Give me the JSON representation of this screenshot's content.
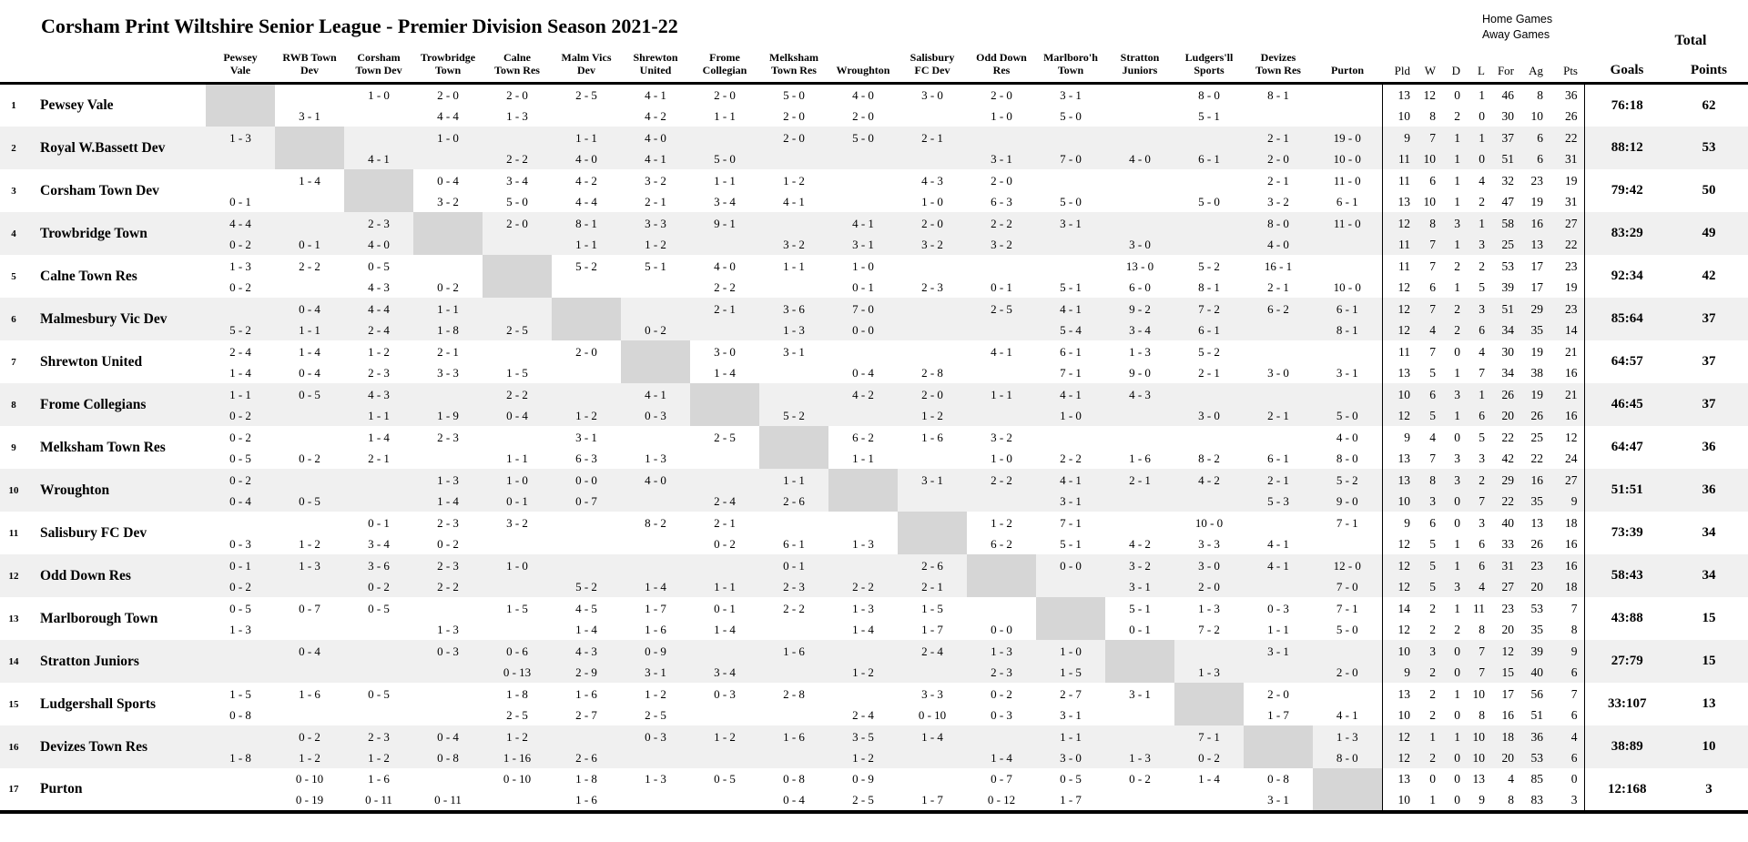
{
  "title": "Corsham Print Wiltshire Senior League - Premier Division Season 2021-22",
  "legend": {
    "home_label": "Home Games",
    "away_label": "Away Games",
    "total_label": "Total"
  },
  "stat_headers": [
    "Pld",
    "W",
    "D",
    "L",
    "For",
    "Ag",
    "Pts"
  ],
  "totals_headers": {
    "goals": "Goals",
    "points": "Points"
  },
  "colors": {
    "background": "#ffffff",
    "stripe": "#f0f0f0",
    "diagonal_cell": "#d6d6d6",
    "border": "#000000",
    "text": "#000000"
  },
  "columns": [
    [
      "Pewsey",
      "Vale"
    ],
    [
      "RWB Town",
      "Dev"
    ],
    [
      "Corsham",
      "Town Dev"
    ],
    [
      "Trowbridge",
      "Town"
    ],
    [
      "Calne",
      "Town Res"
    ],
    [
      "Malm Vics",
      "Dev"
    ],
    [
      "Shrewton",
      "United"
    ],
    [
      "Frome",
      "Collegian"
    ],
    [
      "Melksham",
      "Town Res"
    ],
    [
      "Wroughton"
    ],
    [
      "Salisbury",
      "FC Dev"
    ],
    [
      "Odd Down",
      "Res"
    ],
    [
      "Marlboro'h",
      "Town"
    ],
    [
      "Stratton",
      "Juniors"
    ],
    [
      "Ludgers'll",
      "Sports"
    ],
    [
      "Devizes",
      "Town Res"
    ],
    [
      "Purton"
    ]
  ],
  "teams": [
    {
      "num": "1",
      "name": "Pewsey Vale",
      "home": [
        "",
        "",
        "1 - 0",
        "2 - 0",
        "2 - 0",
        "2 - 5",
        "4 - 1",
        "2 - 0",
        "5 - 0",
        "4 - 0",
        "3 - 0",
        "2 - 0",
        "3 - 1",
        "",
        "8 - 0",
        "8 - 1",
        ""
      ],
      "away": [
        "",
        "3 - 1",
        "",
        "4 - 4",
        "1 - 3",
        "",
        "4 - 2",
        "1 - 1",
        "2 - 0",
        "2 - 0",
        "",
        "1 - 0",
        "5 - 0",
        "",
        "5 - 1",
        "",
        ""
      ],
      "home_stats": [
        13,
        12,
        0,
        1,
        46,
        8,
        36
      ],
      "away_stats": [
        10,
        8,
        2,
        0,
        30,
        10,
        26
      ],
      "goals": "76:18",
      "points": "62"
    },
    {
      "num": "2",
      "name": "Royal W.Bassett Dev",
      "home": [
        "1 - 3",
        "",
        "",
        "1 - 0",
        "",
        "1 - 1",
        "4 - 0",
        "",
        "2 - 0",
        "5 - 0",
        "2 - 1",
        "",
        "",
        "",
        "",
        "2 - 1",
        "19 - 0"
      ],
      "away": [
        "",
        "",
        "4 - 1",
        "",
        "2 - 2",
        "4 - 0",
        "4 - 1",
        "5 - 0",
        "",
        "",
        "",
        "3 - 1",
        "7 - 0",
        "4 - 0",
        "6 - 1",
        "2 - 0",
        "10 - 0"
      ],
      "home_stats": [
        9,
        7,
        1,
        1,
        37,
        6,
        22
      ],
      "away_stats": [
        11,
        10,
        1,
        0,
        51,
        6,
        31
      ],
      "goals": "88:12",
      "points": "53"
    },
    {
      "num": "3",
      "name": "Corsham Town Dev",
      "home": [
        "",
        "1 - 4",
        "",
        "0 - 4",
        "3 - 4",
        "4 - 2",
        "3 - 2",
        "1 - 1",
        "1 - 2",
        "",
        "4 - 3",
        "2 - 0",
        "",
        "",
        "",
        "2 - 1",
        "11 - 0"
      ],
      "away": [
        "0 - 1",
        "",
        "",
        "3 - 2",
        "5 - 0",
        "4 - 4",
        "2 - 1",
        "3 - 4",
        "4 - 1",
        "",
        "1 - 0",
        "6 - 3",
        "5 - 0",
        "",
        "5 - 0",
        "3 - 2",
        "6 - 1"
      ],
      "home_stats": [
        11,
        6,
        1,
        4,
        32,
        23,
        19
      ],
      "away_stats": [
        13,
        10,
        1,
        2,
        47,
        19,
        31
      ],
      "goals": "79:42",
      "points": "50"
    },
    {
      "num": "4",
      "name": "Trowbridge Town",
      "home": [
        "4 - 4",
        "",
        "2 - 3",
        "",
        "2 - 0",
        "8 - 1",
        "3 - 3",
        "9 - 1",
        "",
        "4 - 1",
        "2 - 0",
        "2 - 2",
        "3 - 1",
        "",
        "",
        "8 - 0",
        "11 - 0"
      ],
      "away": [
        "0 - 2",
        "0 - 1",
        "4 - 0",
        "",
        "",
        "1 - 1",
        "1 - 2",
        "",
        "3 - 2",
        "3 - 1",
        "3 - 2",
        "3 - 2",
        "",
        "3 - 0",
        "",
        "4 - 0",
        ""
      ],
      "home_stats": [
        12,
        8,
        3,
        1,
        58,
        16,
        27
      ],
      "away_stats": [
        11,
        7,
        1,
        3,
        25,
        13,
        22
      ],
      "goals": "83:29",
      "points": "49"
    },
    {
      "num": "5",
      "name": "Calne Town Res",
      "home": [
        "1 - 3",
        "2 - 2",
        "0 - 5",
        "",
        "",
        "5 - 2",
        "5 - 1",
        "4 - 0",
        "1 - 1",
        "1 - 0",
        "",
        "",
        "",
        "13 - 0",
        "5 - 2",
        "16 - 1",
        ""
      ],
      "away": [
        "0 - 2",
        "",
        "4 - 3",
        "0 - 2",
        "",
        "",
        "",
        "2 - 2",
        "",
        "0 - 1",
        "2 - 3",
        "0 - 1",
        "5 - 1",
        "6 - 0",
        "8 - 1",
        "2 - 1",
        "10 - 0"
      ],
      "home_stats": [
        11,
        7,
        2,
        2,
        53,
        17,
        23
      ],
      "away_stats": [
        12,
        6,
        1,
        5,
        39,
        17,
        19
      ],
      "goals": "92:34",
      "points": "42"
    },
    {
      "num": "6",
      "name": "Malmesbury Vic Dev",
      "home": [
        "",
        "0 - 4",
        "4 - 4",
        "1 - 1",
        "",
        "",
        "",
        "2 - 1",
        "3 - 6",
        "7 - 0",
        "",
        "2 - 5",
        "4 - 1",
        "9 - 2",
        "7 - 2",
        "6 - 2",
        "6 - 1"
      ],
      "away": [
        "5 - 2",
        "1 - 1",
        "2 - 4",
        "1 - 8",
        "2 - 5",
        "",
        "0 - 2",
        "",
        "1 - 3",
        "0 - 0",
        "",
        "",
        "5 - 4",
        "3 - 4",
        "6 - 1",
        "",
        "8 - 1"
      ],
      "home_stats": [
        12,
        7,
        2,
        3,
        51,
        29,
        23
      ],
      "away_stats": [
        12,
        4,
        2,
        6,
        34,
        35,
        14
      ],
      "goals": "85:64",
      "points": "37"
    },
    {
      "num": "7",
      "name": "Shrewton United",
      "home": [
        "2 - 4",
        "1 - 4",
        "1 - 2",
        "2 - 1",
        "",
        "2 - 0",
        "",
        "3 - 0",
        "3 - 1",
        "",
        "",
        "4 - 1",
        "6 - 1",
        "1 - 3",
        "5 - 2",
        "",
        ""
      ],
      "away": [
        "1 - 4",
        "0 - 4",
        "2 - 3",
        "3 - 3",
        "1 - 5",
        "",
        "",
        "1 - 4",
        "",
        "0 - 4",
        "2 - 8",
        "",
        "7 - 1",
        "9 - 0",
        "2 - 1",
        "3 - 0",
        "3 - 1"
      ],
      "home_stats": [
        11,
        7,
        0,
        4,
        30,
        19,
        21
      ],
      "away_stats": [
        13,
        5,
        1,
        7,
        34,
        38,
        16
      ],
      "goals": "64:57",
      "points": "37"
    },
    {
      "num": "8",
      "name": "Frome Collegians",
      "home": [
        "1 - 1",
        "0 - 5",
        "4 - 3",
        "",
        "2 - 2",
        "",
        "4 - 1",
        "",
        "",
        "4 - 2",
        "2 - 0",
        "1 - 1",
        "4 - 1",
        "4 - 3",
        "",
        "",
        ""
      ],
      "away": [
        "0 - 2",
        "",
        "1 - 1",
        "1 - 9",
        "0 - 4",
        "1 - 2",
        "0 - 3",
        "",
        "5 - 2",
        "",
        "1 - 2",
        "",
        "1 - 0",
        "",
        "3 - 0",
        "2 - 1",
        "5 - 0"
      ],
      "home_stats": [
        10,
        6,
        3,
        1,
        26,
        19,
        21
      ],
      "away_stats": [
        12,
        5,
        1,
        6,
        20,
        26,
        16
      ],
      "goals": "46:45",
      "points": "37"
    },
    {
      "num": "9",
      "name": "Melksham Town Res",
      "home": [
        "0 - 2",
        "",
        "1 - 4",
        "2 - 3",
        "",
        "3 - 1",
        "",
        "2 - 5",
        "",
        "6 - 2",
        "1 - 6",
        "3 - 2",
        "",
        "",
        "",
        "",
        "4 - 0"
      ],
      "away": [
        "0 - 5",
        "0 - 2",
        "2 - 1",
        "",
        "1 - 1",
        "6 - 3",
        "1 - 3",
        "",
        "",
        "1 - 1",
        "",
        "1 - 0",
        "2 - 2",
        "1 - 6",
        "8 - 2",
        "6 - 1",
        "8 - 0"
      ],
      "home_stats": [
        9,
        4,
        0,
        5,
        22,
        25,
        12
      ],
      "away_stats": [
        13,
        7,
        3,
        3,
        42,
        22,
        24
      ],
      "goals": "64:47",
      "points": "36"
    },
    {
      "num": "10",
      "name": "Wroughton",
      "home": [
        "0 - 2",
        "",
        "",
        "1 - 3",
        "1 - 0",
        "0 - 0",
        "4 - 0",
        "",
        "1 - 1",
        "",
        "3 - 1",
        "2 - 2",
        "4 - 1",
        "2 - 1",
        "4 - 2",
        "2 - 1",
        "5 - 2"
      ],
      "away": [
        "0 - 4",
        "0 - 5",
        "",
        "1 - 4",
        "0 - 1",
        "0 - 7",
        "",
        "2 - 4",
        "2 - 6",
        "",
        "",
        "",
        "3 - 1",
        "",
        "",
        "5 - 3",
        "9 - 0"
      ],
      "home_stats": [
        13,
        8,
        3,
        2,
        29,
        16,
        27
      ],
      "away_stats": [
        10,
        3,
        0,
        7,
        22,
        35,
        9
      ],
      "goals": "51:51",
      "points": "36"
    },
    {
      "num": "11",
      "name": "Salisbury FC Dev",
      "home": [
        "",
        "",
        "0 - 1",
        "2 - 3",
        "3 - 2",
        "",
        "8 - 2",
        "2 - 1",
        "",
        "",
        "",
        "1 - 2",
        "7 - 1",
        "",
        "10 - 0",
        "",
        "7 - 1"
      ],
      "away": [
        "0 - 3",
        "1 - 2",
        "3 - 4",
        "0 - 2",
        "",
        "",
        "",
        "0 - 2",
        "6 - 1",
        "1 - 3",
        "",
        "6 - 2",
        "5 - 1",
        "4 - 2",
        "3 - 3",
        "4 - 1",
        ""
      ],
      "home_stats": [
        9,
        6,
        0,
        3,
        40,
        13,
        18
      ],
      "away_stats": [
        12,
        5,
        1,
        6,
        33,
        26,
        16
      ],
      "goals": "73:39",
      "points": "34"
    },
    {
      "num": "12",
      "name": "Odd Down Res",
      "home": [
        "0 - 1",
        "1 - 3",
        "3 - 6",
        "2 - 3",
        "1 - 0",
        "",
        "",
        "",
        "0 - 1",
        "",
        "2 - 6",
        "",
        "0 - 0",
        "3 - 2",
        "3 - 0",
        "4 - 1",
        "12 - 0"
      ],
      "away": [
        "0 - 2",
        "",
        "0 - 2",
        "2 - 2",
        "",
        "5 - 2",
        "1 - 4",
        "1 - 1",
        "2 - 3",
        "2 - 2",
        "2 - 1",
        "",
        "",
        "3 - 1",
        "2 - 0",
        "",
        "7 - 0"
      ],
      "home_stats": [
        12,
        5,
        1,
        6,
        31,
        23,
        16
      ],
      "away_stats": [
        12,
        5,
        3,
        4,
        27,
        20,
        18
      ],
      "goals": "58:43",
      "points": "34"
    },
    {
      "num": "13",
      "name": "Marlborough Town",
      "home": [
        "0 - 5",
        "0 - 7",
        "0 - 5",
        "",
        "1 - 5",
        "4 - 5",
        "1 - 7",
        "0 - 1",
        "2 - 2",
        "1 - 3",
        "1 - 5",
        "",
        "",
        "5 - 1",
        "1 - 3",
        "0 - 3",
        "7 - 1"
      ],
      "away": [
        "1 - 3",
        "",
        "",
        "1 - 3",
        "",
        "1 - 4",
        "1 - 6",
        "1 - 4",
        "",
        "1 - 4",
        "1 - 7",
        "0 - 0",
        "",
        "0 - 1",
        "7 - 2",
        "1 - 1",
        "5 - 0"
      ],
      "home_stats": [
        14,
        2,
        1,
        11,
        23,
        53,
        7
      ],
      "away_stats": [
        12,
        2,
        2,
        8,
        20,
        35,
        8
      ],
      "goals": "43:88",
      "points": "15"
    },
    {
      "num": "14",
      "name": "Stratton Juniors",
      "home": [
        "",
        "0 - 4",
        "",
        "0 - 3",
        "0 - 6",
        "4 - 3",
        "0 - 9",
        "",
        "1 - 6",
        "",
        "2 - 4",
        "1 - 3",
        "1 - 0",
        "",
        "",
        "3 - 1",
        ""
      ],
      "away": [
        "",
        "",
        "",
        "",
        "0 - 13",
        "2 - 9",
        "3 - 1",
        "3 - 4",
        "",
        "1 - 2",
        "",
        "2 - 3",
        "1 - 5",
        "",
        "1 - 3",
        "",
        "2 - 0"
      ],
      "home_stats": [
        10,
        3,
        0,
        7,
        12,
        39,
        9
      ],
      "away_stats": [
        9,
        2,
        0,
        7,
        15,
        40,
        6
      ],
      "goals": "27:79",
      "points": "15"
    },
    {
      "num": "15",
      "name": "Ludgershall Sports",
      "home": [
        "1 - 5",
        "1 - 6",
        "0 - 5",
        "",
        "1 - 8",
        "1 - 6",
        "1 - 2",
        "0 - 3",
        "2 - 8",
        "",
        "3 - 3",
        "0 - 2",
        "2 - 7",
        "3 - 1",
        "",
        "2 - 0",
        ""
      ],
      "away": [
        "0 - 8",
        "",
        "",
        "",
        "2 - 5",
        "2 - 7",
        "2 - 5",
        "",
        "",
        "2 - 4",
        "0 - 10",
        "0 - 3",
        "3 - 1",
        "",
        "",
        "1 - 7",
        "4 - 1"
      ],
      "home_stats": [
        13,
        2,
        1,
        10,
        17,
        56,
        7
      ],
      "away_stats": [
        10,
        2,
        0,
        8,
        16,
        51,
        6
      ],
      "goals": "33:107",
      "points": "13"
    },
    {
      "num": "16",
      "name": "Devizes Town Res",
      "home": [
        "",
        "0 - 2",
        "2 - 3",
        "0 - 4",
        "1 - 2",
        "",
        "0 - 3",
        "1 - 2",
        "1 - 6",
        "3 - 5",
        "1 - 4",
        "",
        "1 - 1",
        "",
        "7 - 1",
        "",
        "1 - 3"
      ],
      "away": [
        "1 - 8",
        "1 - 2",
        "1 - 2",
        "0 - 8",
        "1 - 16",
        "2 - 6",
        "",
        "",
        "",
        "1 - 2",
        "",
        "1 - 4",
        "3 - 0",
        "1 - 3",
        "0 - 2",
        "",
        "8 - 0"
      ],
      "home_stats": [
        12,
        1,
        1,
        10,
        18,
        36,
        4
      ],
      "away_stats": [
        12,
        2,
        0,
        10,
        20,
        53,
        6
      ],
      "goals": "38:89",
      "points": "10"
    },
    {
      "num": "17",
      "name": "Purton",
      "home": [
        "",
        "0 - 10",
        "1 - 6",
        "",
        "0 - 10",
        "1 - 8",
        "1 - 3",
        "0 - 5",
        "0 - 8",
        "0 - 9",
        "",
        "0 - 7",
        "0 - 5",
        "0 - 2",
        "1 - 4",
        "0 - 8",
        ""
      ],
      "away": [
        "",
        "0 - 19",
        "0 - 11",
        "0 - 11",
        "",
        "1 - 6",
        "",
        "",
        "0 - 4",
        "2 - 5",
        "1 - 7",
        "0 - 12",
        "1 - 7",
        "",
        "",
        "3 - 1",
        ""
      ],
      "home_stats": [
        13,
        0,
        0,
        13,
        4,
        85,
        0
      ],
      "away_stats": [
        10,
        1,
        0,
        9,
        8,
        83,
        3
      ],
      "goals": "12:168",
      "points": "3"
    }
  ]
}
